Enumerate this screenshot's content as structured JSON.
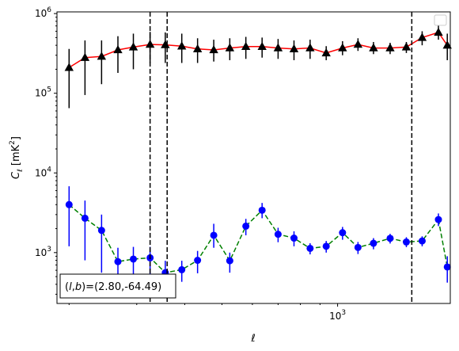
{
  "chart_data": {
    "type": "scatter",
    "title": "",
    "xlabel": "ℓ",
    "ylabel": "C_ℓ  [mK²]",
    "xscale": "log",
    "yscale": "log",
    "xlim": [
      186,
      1965
    ],
    "ylim": [
      230,
      1050000
    ],
    "x_ticks": [
      {
        "base": "10",
        "exp": "3"
      }
    ],
    "y_ticks": [
      {
        "base": "10",
        "exp": "3"
      },
      {
        "base": "10",
        "exp": "4"
      },
      {
        "base": "10",
        "exp": "5"
      },
      {
        "base": "10",
        "exp": "6"
      }
    ],
    "grid": false,
    "legend": {
      "location": "upper right",
      "entries": []
    },
    "x": [
      200,
      220,
      243,
      268,
      294,
      325,
      356,
      393,
      432,
      476,
      524,
      577,
      636,
      700,
      770,
      848,
      934,
      1030,
      1130,
      1240,
      1370,
      1510,
      1660,
      1830
    ],
    "series": [
      {
        "color": "#ff0000",
        "line_style": "solid",
        "marker": "triangle-up",
        "marker_color": "#000000",
        "errorbar_color": "#000000",
        "values": [
          210000,
          280000,
          290000,
          350000,
          380000,
          410000,
          405000,
          390000,
          360000,
          350000,
          370000,
          385000,
          385000,
          370000,
          360000,
          370000,
          320000,
          370000,
          410000,
          370000,
          370000,
          380000,
          500000,
          580000
        ],
        "lower": [
          65000,
          95000,
          130000,
          180000,
          200000,
          240000,
          240000,
          240000,
          240000,
          250000,
          260000,
          270000,
          280000,
          270000,
          260000,
          270000,
          260000,
          300000,
          340000,
          310000,
          310000,
          320000,
          400000,
          470000
        ],
        "upper": [
          360000,
          460000,
          460000,
          520000,
          560000,
          590000,
          580000,
          560000,
          490000,
          470000,
          490000,
          510000,
          500000,
          480000,
          460000,
          470000,
          390000,
          450000,
          490000,
          440000,
          430000,
          440000,
          600000,
          720000
        ],
        "extra_point": {
          "x": 1930,
          "value": 400000,
          "lower": 260000,
          "upper": 560000
        }
      },
      {
        "color": "#008000",
        "line_style": "dashed",
        "marker": "circle",
        "marker_color": "#0000ff",
        "errorbar_color": "#0000ff",
        "values": [
          4000,
          2700,
          1900,
          770,
          830,
          860,
          560,
          610,
          800,
          1650,
          790,
          2150,
          3400,
          1700,
          1520,
          1130,
          1200,
          1780,
          1160,
          1310,
          1510,
          1360,
          1400,
          2600
        ],
        "lower": [
          1200,
          800,
          560,
          520,
          520,
          470,
          430,
          430,
          550,
          1150,
          560,
          1650,
          2700,
          1350,
          1200,
          950,
          1000,
          1450,
          960,
          1100,
          1300,
          1170,
          1200,
          2150
        ],
        "upper": [
          6800,
          4500,
          3000,
          1150,
          1180,
          1180,
          790,
          790,
          1050,
          2300,
          1000,
          2650,
          4200,
          2050,
          1850,
          1310,
          1400,
          2100,
          1360,
          1520,
          1720,
          1560,
          1600,
          3100
        ],
        "extra_point": {
          "x": 1930,
          "value": 660,
          "lower": 420,
          "upper": 900
        }
      }
    ],
    "vlines": [
      {
        "x": 325,
        "style": "dashed",
        "color": "#000000"
      },
      {
        "x": 360,
        "style": "dashed",
        "color": "#000000"
      },
      {
        "x": 1560,
        "style": "dashed",
        "color": "#000000"
      }
    ],
    "annotation": {
      "text": "(l,b)=(2.80,-64.49)",
      "location": "lower left"
    }
  }
}
